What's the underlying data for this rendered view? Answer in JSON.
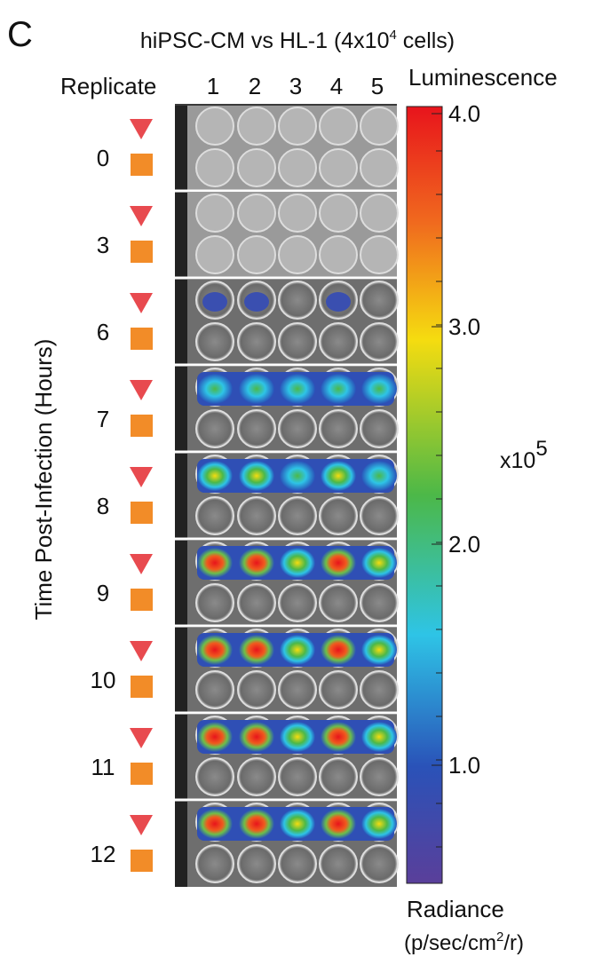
{
  "panel_label": "C",
  "title": {
    "main": "hiPSC-CM vs HL-1 (4x10",
    "sup": "4",
    "end": " cells)"
  },
  "header": {
    "replicate": "Replicate",
    "replicates": [
      "1",
      "2",
      "3",
      "4",
      "5"
    ]
  },
  "y_axis_label": "Time Post-Infection (Hours)",
  "time_points": [
    "0",
    "3",
    "6",
    "7",
    "8",
    "9",
    "10",
    "11",
    "12"
  ],
  "colorbar": {
    "title": "Luminescence",
    "ticks": [
      "4.0",
      "3.0",
      "2.0",
      "1.0"
    ],
    "multiplier": "x10",
    "multiplier_exp": "5",
    "unit_title": "Radiance",
    "unit_pre": "(p/sec/cm",
    "unit_sup": "2",
    "unit_post": "/r)"
  }
}
